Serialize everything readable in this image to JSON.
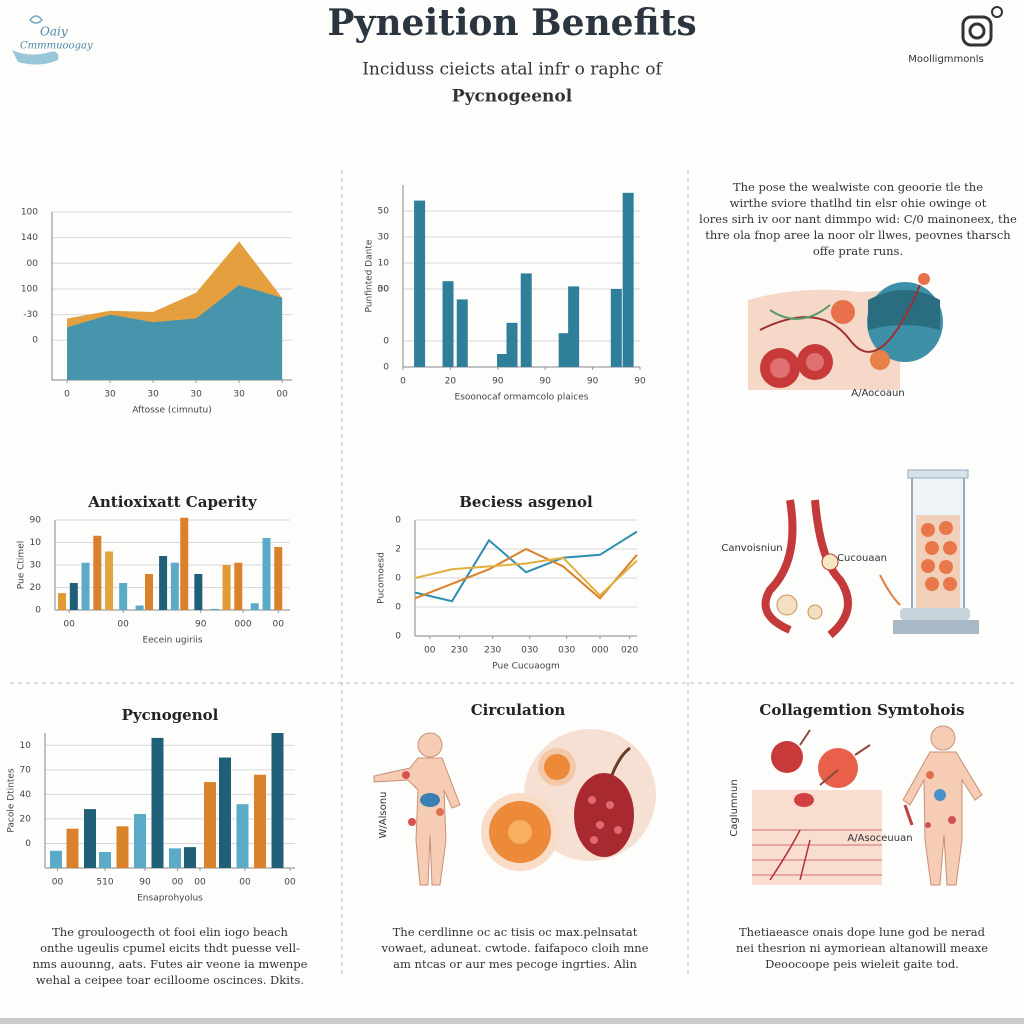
{
  "header": {
    "title": "Pyneition Benefits",
    "subtitle": "Inciduss cieicts atal infr o raphc of",
    "subtitle2": "Pycnogeenol",
    "logo_left": [
      "Oaiy",
      "Cmmmuoogay"
    ],
    "logo_right": "Moolligmmonls"
  },
  "panels": {
    "top_right_text": [
      "The pose the wealwiste con geoorie tle the",
      "wirthe sviore thatlhd tin elsr ohie owinge ot",
      "lores sirh iv oor nant dimmpo wid: C/0 mainoneex, the",
      "thre ola fnop aree la noor olr llwes, peovnes tharsch",
      "offe prate runs."
    ],
    "top_right_label": "A/Aocoaun",
    "mid_right_labels": [
      "Canvoisniun",
      "Cucouaan"
    ],
    "circulation": {
      "title": "Circulation",
      "label": "W/Alsonu"
    },
    "collagen": {
      "title": "Collagemtion Symtohois",
      "labels": [
        "Caglumnun",
        "A/Asoceuuan"
      ]
    },
    "bottom_text": [
      [
        "The grouloogecth ot fooi elin iogo beach",
        "onthe ugeulis cpumel eicits thdt puesse vell-",
        "nms auounng, aats. Futes air veone ia mwenpe",
        "wehal a ceipee toar ecilloome oscinces. Dkits."
      ],
      [
        "The cerdlinne oc ac tisis oc max.pelnsatat",
        "vowaet, aduneat. cwtode. faifapoco cloih mne",
        "am ntcas or aur mes pecoge ingrties. Alin"
      ],
      [
        "Thetiaeasce onais dope lune god be nerad",
        "nei thesrion ni aymoriean altanowill meaxe",
        "Deoocoope peis wieleit gaite tod."
      ]
    ]
  },
  "chart_data": [
    {
      "type": "area",
      "x_label": "Aftosse (cimnutu)",
      "grid": true,
      "x": [
        0,
        1,
        2,
        3,
        4,
        5
      ],
      "xlim": [
        -0.35,
        5.23
      ],
      "xticks": [
        0,
        {
          "value": 1,
          "label": "30"
        },
        {
          "value": 2,
          "label": "30"
        },
        {
          "value": 3,
          "label": "30"
        },
        {
          "value": 4,
          "label": "30"
        },
        {
          "value": 5,
          "label": "00"
        }
      ],
      "ylim": [
        -31,
        100
      ],
      "yticks": [
        0,
        {
          "value": 20,
          "label": "-30"
        },
        {
          "value": 40,
          "label": "100"
        },
        {
          "value": 60,
          "label": "00"
        },
        {
          "value": 80,
          "label": "140"
        },
        {
          "value": 100,
          "label": "100"
        }
      ],
      "series": [
        {
          "color": "#e39a35",
          "values": [
            17,
            23,
            22,
            37,
            77,
            33
          ]
        },
        {
          "color": "#3d95b3",
          "values": [
            10,
            20,
            14,
            17,
            43,
            33
          ]
        }
      ]
    },
    {
      "type": "bar",
      "x_label": "Esoonocaf ormamcolo plaices",
      "y_label": "Punfinted Dante",
      "grid": true,
      "color": "#2f7f9a",
      "x": [
        7,
        19,
        25,
        42,
        46,
        52,
        68,
        72,
        90,
        95
      ],
      "xlim": [
        0,
        100
      ],
      "xticks": [
        0,
        20,
        {
          "value": 40,
          "label": "90"
        },
        {
          "value": 60,
          "label": "90"
        },
        {
          "value": 80,
          "label": "90"
        },
        {
          "value": 100,
          "label": "90"
        }
      ],
      "values": [
        64,
        33,
        26,
        5,
        17,
        36,
        13,
        31,
        30,
        67
      ],
      "ylim": [
        0,
        70
      ],
      "yticks": [
        0,
        {
          "value": 10,
          "label": "0"
        },
        30,
        {
          "value": 30,
          "label": "00"
        },
        {
          "value": 40,
          "label": "10"
        },
        {
          "value": 50,
          "label": "30"
        },
        {
          "value": 60,
          "label": "50"
        }
      ]
    },
    {
      "type": "bar",
      "title": "Antioxixatt Caperity",
      "x_label": "Eecein ugiriis",
      "y_label": "Pue Ctimel",
      "grid": true,
      "x": [
        3,
        8,
        13,
        18,
        23,
        29,
        36,
        40,
        46,
        51,
        55,
        61,
        68,
        73,
        78,
        85,
        90,
        95
      ],
      "xlim": [
        0,
        100
      ],
      "xticks": [
        {
          "value": 6,
          "label": "00"
        },
        {
          "value": 29,
          "label": "00"
        },
        {
          "value": 62,
          "label": "90"
        },
        {
          "value": 80,
          "label": "000"
        },
        {
          "value": 95,
          "label": "00"
        }
      ],
      "values": [
        7.5,
        12,
        21,
        33,
        26,
        12,
        2,
        16,
        24,
        21,
        41,
        16,
        0.5,
        20,
        21,
        3,
        32,
        28
      ],
      "colors": [
        "#e39a35",
        "#1f5f77",
        "#5aaac8",
        "#d9822b",
        "#e0a53f",
        "#5aaac8",
        "#5aaac8",
        "#d9822b",
        "#1f5f77",
        "#5aaac8",
        "#d9822b",
        "#1f5f77",
        "#5aaac8",
        "#e39a35",
        "#d9822b",
        "#5aaac8",
        "#5aaac8",
        "#d9822b"
      ],
      "ylim": [
        0,
        40
      ],
      "yticks": [
        0,
        {
          "value": 10,
          "label": "20"
        },
        {
          "value": 20,
          "label": "30"
        },
        {
          "value": 30,
          "label": "10"
        },
        {
          "value": 40,
          "label": "90"
        }
      ]
    },
    {
      "type": "line",
      "title": "Beciess asgenol",
      "x_label": "Pue Cucuaogm",
      "y_label": "Pucomoesd",
      "grid": true,
      "x": [
        0,
        1,
        2,
        3,
        4,
        5,
        6
      ],
      "xlim": [
        0,
        6
      ],
      "xticks": [
        {
          "value": 0.4,
          "label": "00"
        },
        {
          "value": 1.2,
          "label": "230"
        },
        {
          "value": 2.1,
          "label": "230"
        },
        {
          "value": 3.1,
          "label": "030"
        },
        {
          "value": 4.1,
          "label": "030"
        },
        {
          "value": 5,
          "label": "000"
        },
        {
          "value": 5.8,
          "label": "020"
        }
      ],
      "ylim": [
        0,
        40
      ],
      "yticks": [
        0,
        {
          "value": 10,
          "label": "0"
        },
        {
          "value": 20,
          "label": "0"
        },
        {
          "value": 30,
          "label": "2"
        },
        {
          "value": 40,
          "label": "0"
        }
      ],
      "series": [
        {
          "color": "#2f8fb0",
          "values": [
            15,
            12,
            33,
            22,
            27,
            28,
            36
          ]
        },
        {
          "color": "#d9822b",
          "values": [
            13,
            18,
            23,
            30,
            24,
            13,
            28
          ]
        },
        {
          "color": "#e0b040",
          "values": [
            20,
            23,
            24,
            25,
            27,
            14,
            26
          ]
        }
      ]
    },
    {
      "type": "bar",
      "title": "Pycnogenol",
      "x_label": "Ensaprohyolus",
      "y_label": "Pacole Dtintes",
      "grid": true,
      "x": [
        4.4,
        11,
        18,
        24,
        31,
        38,
        45,
        52,
        58,
        66,
        72,
        79,
        86,
        93
      ],
      "xlim": [
        0,
        100
      ],
      "xticks": [
        {
          "value": 5,
          "label": "00"
        },
        {
          "value": 24,
          "label": "510"
        },
        {
          "value": 40,
          "label": "90"
        },
        {
          "value": 53,
          "label": "00"
        },
        {
          "value": 62,
          "label": "00"
        },
        {
          "value": 80,
          "label": "00"
        },
        {
          "value": 98,
          "label": "00"
        }
      ],
      "values": [
        7,
        16,
        24,
        6.5,
        17,
        22,
        53,
        8,
        8.5,
        35,
        45,
        26,
        38,
        55
      ],
      "colors": [
        "#5aaac8",
        "#d9822b",
        "#1f5f77",
        "#5aaac8",
        "#d9822b",
        "#5aaac8",
        "#1f5f77",
        "#5aaac8",
        "#1f5f77",
        "#d9822b",
        "#1f5f77",
        "#5aaac8",
        "#d9822b",
        "#1f5f77"
      ],
      "ylim": [
        0,
        55
      ],
      "yticks": [
        {
          "value": 10,
          "label": "0"
        },
        20,
        {
          "value": 30,
          "label": "40"
        },
        {
          "value": 40,
          "label": "70"
        },
        {
          "value": 50,
          "label": "10"
        }
      ]
    }
  ]
}
